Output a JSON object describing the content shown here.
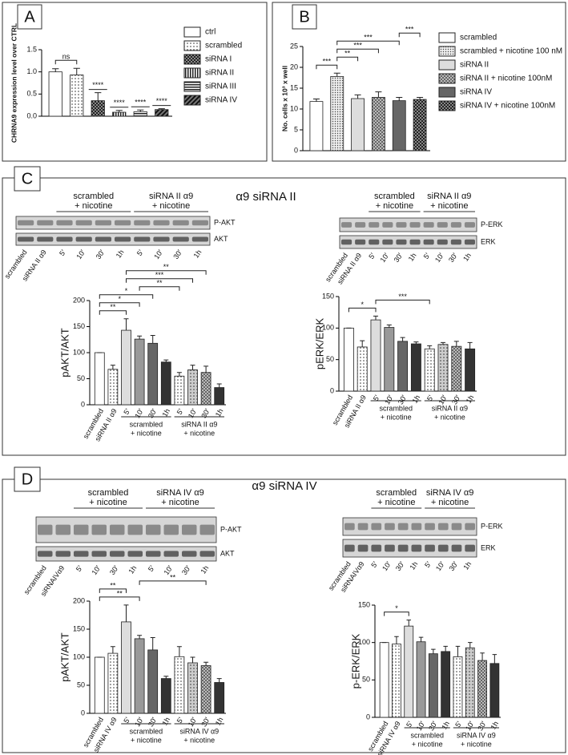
{
  "panels": [
    {
      "letter": "A"
    },
    {
      "letter": "B"
    },
    {
      "letter": "C",
      "title": "α9 siRNA II",
      "blots": [
        {
          "groups": [
            [
              "scrambled",
              "+ nicotine"
            ],
            [
              "siRNA II α9",
              "+ nicotine"
            ]
          ],
          "rows": [
            "P-AKT",
            "AKT"
          ],
          "lanes": [
            "scrambled",
            "siRNA II α9",
            "5'",
            "10'",
            "30'",
            "1h",
            "5'",
            "10'",
            "30'",
            "1h"
          ]
        },
        {
          "groups": [
            [
              "scrambled",
              "+ nicotine"
            ],
            [
              "siRNA II α9",
              "+ nicotine"
            ]
          ],
          "rows": [
            "P-ERK",
            "ERK"
          ],
          "lanes": [
            "scrambled",
            "siRNA II α9",
            "5'",
            "10'",
            "30'",
            "1h",
            "5'",
            "10'",
            "30'",
            "1h"
          ]
        }
      ]
    },
    {
      "letter": "D",
      "title": "α9 siRNA IV",
      "blots": [
        {
          "groups": [
            [
              "scrambled",
              "+ nicotine"
            ],
            [
              "siRNA IV α9",
              "+ nicotine"
            ]
          ],
          "rows": [
            "P-AKT",
            "AKT"
          ],
          "lanes": [
            "scrambled",
            "siRNAIVα9",
            "5'",
            "10'",
            "30'",
            "1h",
            "5'",
            "10'",
            "30'",
            "1h"
          ]
        },
        {
          "groups": [
            [
              "scrambled",
              "+ nicotine"
            ],
            [
              "siRNA IV α9",
              "+ nicotine"
            ]
          ],
          "rows": [
            "P-ERK",
            "ERK"
          ],
          "lanes": [
            "scrambled",
            "siRNAIVα9",
            "5'",
            "10'",
            "30'",
            "1h",
            "5'",
            "10'",
            "30'",
            "1h"
          ]
        }
      ]
    }
  ],
  "chart_data": [
    {
      "type": "bar",
      "ylabel": "CHRNA9 expression level over CTRL",
      "categories": [
        "ctrl",
        "scrambled",
        "siRNA I",
        "siRNA II",
        "siRNA III",
        "siRNA IV"
      ],
      "values": [
        1.0,
        0.93,
        0.35,
        0.09,
        0.1,
        0.15
      ],
      "errors": [
        0.07,
        0.15,
        0.18,
        0.04,
        0.04,
        0.02
      ],
      "fills": [
        "white",
        "dots",
        "checker-dark",
        "vlines",
        "hlines",
        "diag-dark"
      ],
      "ylim": [
        0,
        1.5
      ],
      "yticks": [
        {
          "value": 0,
          "label": "0.0"
        },
        {
          "value": 0.5,
          "label": "0.5"
        },
        {
          "value": 1,
          "label": "1.0"
        },
        {
          "value": 1.5,
          "label": "1.5"
        }
      ],
      "legend": "right",
      "brackets": [
        {
          "from": 0,
          "to": 1,
          "label": "ns"
        }
      ],
      "significance": [
        null,
        null,
        "****",
        "****",
        "****",
        "****"
      ]
    },
    {
      "type": "bar",
      "ylabel": "No. cells x 10³ x well",
      "categories": [
        "scrambled",
        "scrambled + nicotine 100 nM",
        "siRNA II",
        "siRNA II + nicotine 100nM",
        "siRNA IV",
        "siRNA IV + nicotine 100nM"
      ],
      "values": [
        11.8,
        17.8,
        12.5,
        12.8,
        12.0,
        12.3
      ],
      "errors": [
        0.6,
        0.8,
        0.9,
        1.3,
        0.8,
        0.5
      ],
      "fills": [
        "white",
        "dense",
        "light",
        "checker",
        "dark",
        "checker-dark"
      ],
      "ylim": [
        0,
        25
      ],
      "yticks": [
        0,
        5,
        10,
        15,
        20,
        25
      ],
      "legend": "right",
      "brackets": [
        {
          "from": 0,
          "to": 1,
          "label": "***"
        },
        {
          "from": 1,
          "to": 2,
          "label": "**"
        },
        {
          "from": 1,
          "to": 3,
          "label": "***"
        },
        {
          "from": 1,
          "to": 4,
          "label": "***"
        },
        {
          "from": 4,
          "to": 5,
          "label": "***"
        }
      ]
    },
    {
      "type": "bar",
      "ylabel": "pAKT/AKT",
      "categories": [
        "scrambled",
        "siRNA II α9",
        "5'",
        "10'",
        "30'",
        "1h",
        "5'",
        "10'",
        "30'",
        "1h"
      ],
      "values": [
        100,
        68,
        143,
        126,
        118,
        82,
        55,
        67,
        62,
        33
      ],
      "errors": [
        0,
        8,
        22,
        6,
        15,
        4,
        7,
        9,
        12,
        7
      ],
      "fills": [
        "white",
        "dots",
        "light",
        "medium",
        "dark",
        "black",
        "dots",
        "dots-gray",
        "checker",
        "black"
      ],
      "ylim": [
        0,
        200
      ],
      "yticks": [
        0,
        50,
        100,
        150,
        200
      ],
      "groups": [
        [
          "scrambled",
          "+ nicotine"
        ],
        [
          "siRNA II α9",
          "+ nicotine"
        ]
      ],
      "brackets": [
        {
          "from": 0,
          "to": 2,
          "label": "**"
        },
        {
          "from": 0,
          "to": 3,
          "label": "*"
        },
        {
          "from": 0,
          "to": 4,
          "label": "*"
        },
        {
          "from": 3,
          "to": 6,
          "label": "**"
        },
        {
          "from": 2,
          "to": 7,
          "label": "***"
        },
        {
          "from": 2,
          "to": 8,
          "label": "**"
        }
      ]
    },
    {
      "type": "bar",
      "ylabel": "pERK/ERK",
      "categories": [
        "scrambled",
        "siRNA II α9",
        "5'",
        "10'",
        "30'",
        "1h",
        "5'",
        "10'",
        "30'",
        "1h"
      ],
      "values": [
        100,
        70,
        113,
        101,
        79,
        75,
        67,
        74,
        71,
        67
      ],
      "errors": [
        0,
        10,
        6,
        4,
        6,
        3,
        5,
        3,
        8,
        10
      ],
      "fills": [
        "white",
        "dots",
        "light",
        "medium",
        "dark",
        "black",
        "dots",
        "dots-gray",
        "checker",
        "black"
      ],
      "ylim": [
        0,
        150
      ],
      "yticks": [
        0,
        50,
        100,
        150
      ],
      "groups": [
        [
          "scrambled",
          "+ nicotine"
        ],
        [
          "siRNA II α9",
          "+ nicotine"
        ]
      ],
      "brackets": [
        {
          "from": 0,
          "to": 2,
          "label": "*"
        },
        {
          "from": 2,
          "to": 6,
          "label": "***"
        }
      ]
    },
    {
      "type": "bar",
      "ylabel": "pAKT/AKT",
      "categories": [
        "scrambled",
        "siRNA IV α9",
        "5'",
        "10'",
        "30'",
        "1h",
        "5'",
        "10'",
        "30'",
        "1h"
      ],
      "values": [
        100,
        107,
        163,
        133,
        113,
        62,
        101,
        90,
        85,
        55
      ],
      "errors": [
        0,
        12,
        30,
        6,
        22,
        4,
        18,
        10,
        6,
        7
      ],
      "fills": [
        "white",
        "dots",
        "light",
        "medium",
        "dark",
        "black",
        "dots",
        "dots-gray",
        "checker",
        "black"
      ],
      "ylim": [
        0,
        200
      ],
      "yticks": [
        0,
        50,
        100,
        150,
        200
      ],
      "groups": [
        [
          "scrambled",
          "+ nicotine"
        ],
        [
          "siRNA IV α9",
          "+ nicotine"
        ]
      ],
      "brackets": [
        {
          "from": 0,
          "to": 3,
          "label": "**"
        },
        {
          "from": 0,
          "to": 2,
          "label": "**"
        },
        {
          "from": 3,
          "to": 8,
          "label": "**"
        }
      ]
    },
    {
      "type": "bar",
      "ylabel": "p-ERK/ERK",
      "categories": [
        "scrambled",
        "siRNA IV α9",
        "5'",
        "10'",
        "30'",
        "1h",
        "5'",
        "10'",
        "30'",
        "1h"
      ],
      "values": [
        100,
        98,
        122,
        101,
        85,
        88,
        81,
        93,
        76,
        72
      ],
      "errors": [
        0,
        10,
        8,
        6,
        6,
        7,
        14,
        7,
        10,
        12
      ],
      "fills": [
        "white",
        "dots",
        "light",
        "medium",
        "dark",
        "black",
        "dots",
        "dots-gray",
        "checker",
        "black"
      ],
      "ylim": [
        0,
        150
      ],
      "yticks": [
        0,
        50,
        100,
        150
      ],
      "groups": [
        [
          "scrambled",
          "+ nicotine"
        ],
        [
          "siRNA IV α9",
          "+ nicotine"
        ]
      ],
      "brackets": [
        {
          "from": 0,
          "to": 2,
          "label": "*"
        }
      ]
    }
  ]
}
